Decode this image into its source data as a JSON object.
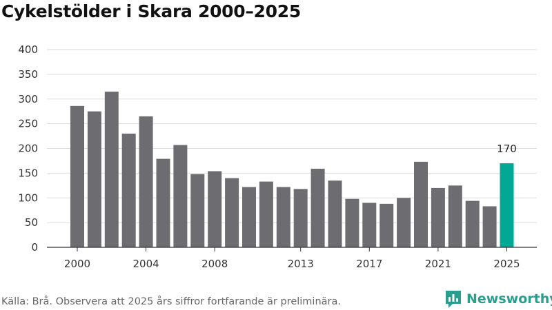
{
  "chart_data": {
    "type": "bar",
    "title": "Cykelstölder i Skara 2000–2025",
    "x": [
      2000,
      2001,
      2002,
      2003,
      2004,
      2005,
      2006,
      2007,
      2008,
      2009,
      2010,
      2011,
      2012,
      2013,
      2014,
      2015,
      2016,
      2017,
      2018,
      2019,
      2020,
      2021,
      2022,
      2023,
      2024,
      2025
    ],
    "values": [
      286,
      275,
      315,
      230,
      265,
      179,
      207,
      148,
      154,
      140,
      122,
      133,
      122,
      118,
      159,
      135,
      98,
      90,
      88,
      100,
      173,
      120,
      125,
      94,
      83,
      170
    ],
    "x_tick_labels": [
      "2000",
      "2004",
      "2008",
      "2013",
      "2017",
      "2021",
      "2025"
    ],
    "y_ticks": [
      0,
      50,
      100,
      150,
      200,
      250,
      300,
      350,
      400
    ],
    "ylim": [
      0,
      400
    ],
    "highlight": {
      "year": 2025,
      "label": "170",
      "color": "#00a896"
    },
    "bar_color": "#6d6c71",
    "grid": true
  },
  "source": "Källa: Brå. Observera att 2025 års siffror fortfarande är preliminära.",
  "brand": {
    "name": "Newsworthy",
    "color": "#2a9d8f",
    "icon": "newsworthy-logo-icon"
  }
}
